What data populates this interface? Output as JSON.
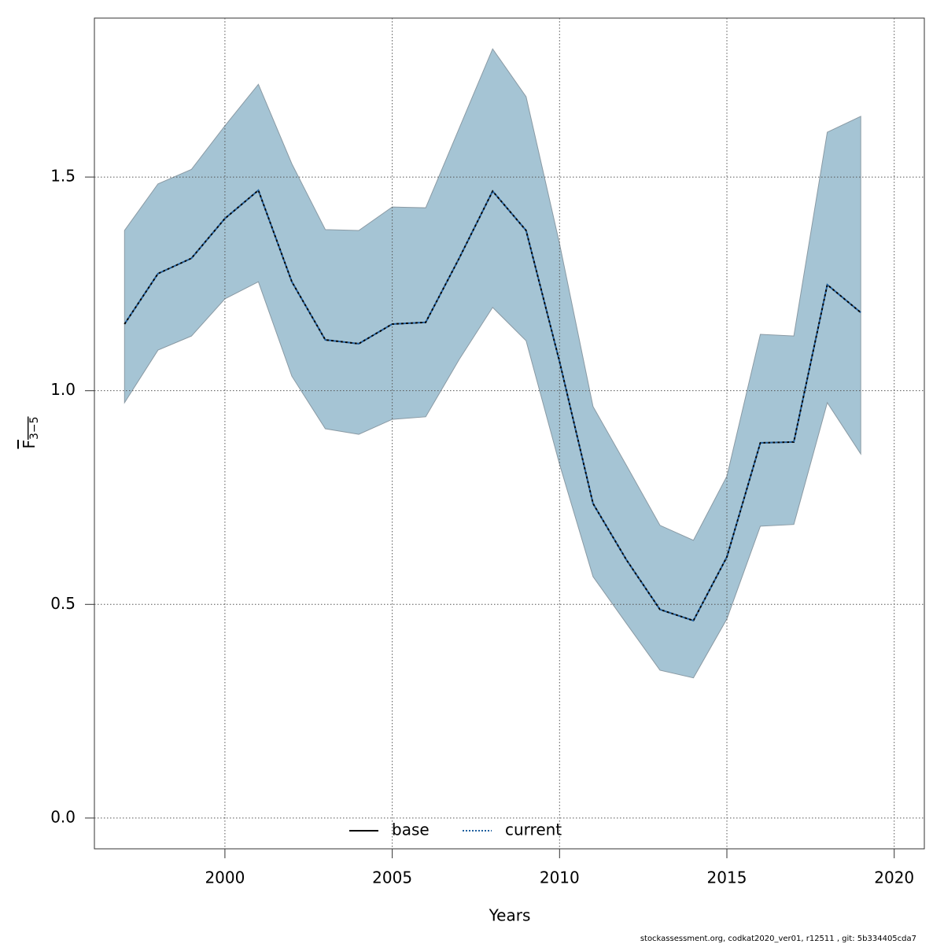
{
  "chart_data": {
    "type": "line",
    "x": [
      1997,
      1998,
      1999,
      2000,
      2001,
      2002,
      2003,
      2004,
      2005,
      2006,
      2007,
      2008,
      2009,
      2010,
      2011,
      2012,
      2013,
      2014,
      2015,
      2016,
      2017,
      2018,
      2019
    ],
    "series": [
      {
        "name": "base",
        "color": "#000000",
        "values": [
          1.156,
          1.274,
          1.31,
          1.403,
          1.469,
          1.255,
          1.119,
          1.11,
          1.156,
          1.16,
          1.31,
          1.467,
          1.375,
          1.068,
          0.736,
          0.604,
          0.488,
          0.462,
          0.611,
          0.878,
          0.88,
          1.248,
          1.183
        ]
      },
      {
        "name": "current",
        "color": "#1f5f9f",
        "values": [
          1.156,
          1.274,
          1.31,
          1.403,
          1.469,
          1.255,
          1.119,
          1.11,
          1.156,
          1.16,
          1.31,
          1.467,
          1.375,
          1.068,
          0.736,
          0.604,
          0.488,
          0.462,
          0.611,
          0.878,
          0.88,
          1.248,
          1.183
        ],
        "upper": [
          1.375,
          1.484,
          1.518,
          1.62,
          1.717,
          1.531,
          1.377,
          1.375,
          1.43,
          1.428,
          1.614,
          1.8,
          1.688,
          1.344,
          0.963,
          0.825,
          0.685,
          0.65,
          0.8,
          1.132,
          1.128,
          1.605,
          1.642
        ],
        "lower": [
          0.972,
          1.095,
          1.128,
          1.215,
          1.255,
          1.034,
          0.911,
          0.898,
          0.933,
          0.939,
          1.073,
          1.195,
          1.117,
          0.828,
          0.565,
          0.455,
          0.346,
          0.328,
          0.466,
          0.683,
          0.687,
          0.972,
          0.852
        ],
        "band_color": "#a5c4d4"
      }
    ],
    "x_label": "Years",
    "y_label": "F",
    "y_label_sub": "3−5",
    "xlim": [
      1996.1,
      2020.9
    ],
    "ylim": [
      -0.072,
      1.872
    ],
    "xticks": [
      2000,
      2005,
      2010,
      2015,
      2020
    ],
    "yticks": [
      {
        "value": 0,
        "label": "0.0"
      },
      0.5,
      {
        "value": 1,
        "label": "1.0"
      },
      1.5
    ],
    "grid": true,
    "legend": "bottom",
    "footnote": "stockassessment.org, codkat2020_ver01, r12511 , git: 5b334405cda7"
  }
}
